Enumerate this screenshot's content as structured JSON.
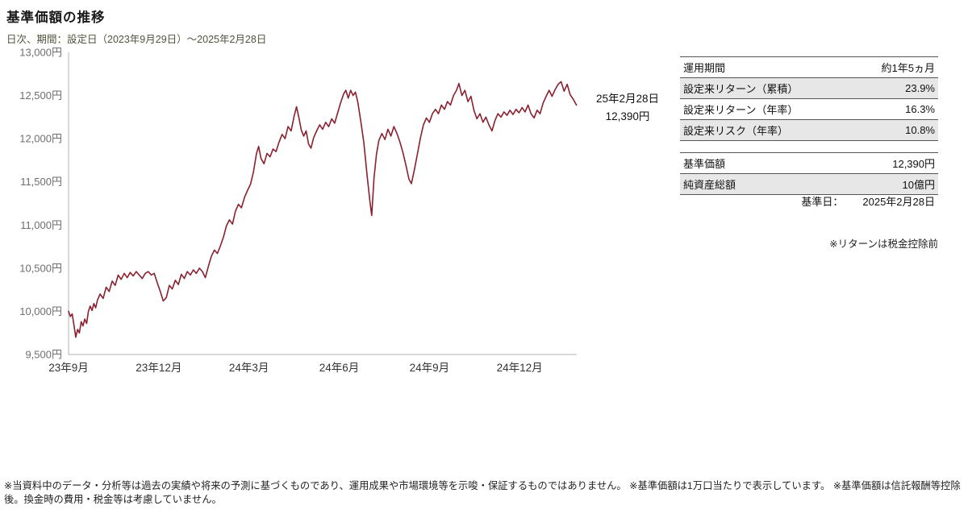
{
  "page": {
    "title": "基準価額の推移",
    "subtitle": "日次、期間：設定日（2023年9月29日）～2025年2月28日",
    "note_right": "※リターンは税金控除前",
    "disclaimer": "※当資料中のデータ・分析等は過去の実績や将来の予測に基づくものであり、運用成果や市場環境等を示唆・保証するものではありません。 ※基準価額は1万口当たりで表示しています。 ※基準価額は信託報酬等控除後。換金時の費用・税金等は考慮していません。"
  },
  "annotation": {
    "date": "25年2月28日",
    "value": "12,390円"
  },
  "tables": {
    "performance": {
      "rows": [
        {
          "label": "運用期間",
          "value": "約1年5ヵ月"
        },
        {
          "label": "設定来リターン（累積）",
          "value": "23.9%"
        },
        {
          "label": "設定来リターン（年率）",
          "value": "16.3%"
        },
        {
          "label": "設定来リスク（年率）",
          "value": "10.8%"
        }
      ]
    },
    "nav": {
      "rows": [
        {
          "label": "基準価額",
          "value": "12,390円"
        },
        {
          "label": "純資産総額",
          "value": "10億円"
        }
      ],
      "as_of_label": "基準日：",
      "as_of_value": "2025年2月28日"
    }
  },
  "chart_data": {
    "type": "line",
    "title": "基準価額の推移",
    "series_name": "基準価額",
    "unit": "円",
    "x_unit": "months_from_setup_2023-09-29",
    "xlim": [
      0,
      16.9
    ],
    "ylim": [
      9500,
      13000
    ],
    "yticks": [
      9500,
      10000,
      10500,
      11000,
      11500,
      12000,
      12500,
      13000
    ],
    "ytick_labels": [
      "9,500円",
      "10,000円",
      "10,500円",
      "11,000円",
      "11,500円",
      "12,000円",
      "12,500円",
      "13,000円"
    ],
    "xticks": [
      0,
      3,
      6,
      9,
      12,
      15
    ],
    "xtick_labels": [
      "23年9月",
      "23年12月",
      "24年3月",
      "24年6月",
      "24年9月",
      "24年12月"
    ],
    "grid": false,
    "legend": false,
    "line_color": "#8b202e",
    "axis_color": "#b3b3b3",
    "last_point": {
      "date": "2025年2月28日",
      "value": 12390
    },
    "points": [
      [
        0.0,
        10000
      ],
      [
        0.06,
        9940
      ],
      [
        0.12,
        9970
      ],
      [
        0.18,
        9840
      ],
      [
        0.24,
        9700
      ],
      [
        0.3,
        9790
      ],
      [
        0.36,
        9750
      ],
      [
        0.42,
        9880
      ],
      [
        0.48,
        9830
      ],
      [
        0.54,
        9910
      ],
      [
        0.6,
        9860
      ],
      [
        0.66,
        10000
      ],
      [
        0.72,
        10060
      ],
      [
        0.78,
        10010
      ],
      [
        0.84,
        10090
      ],
      [
        0.9,
        10040
      ],
      [
        0.96,
        10130
      ],
      [
        1.05,
        10200
      ],
      [
        1.15,
        10150
      ],
      [
        1.25,
        10280
      ],
      [
        1.35,
        10230
      ],
      [
        1.45,
        10350
      ],
      [
        1.55,
        10300
      ],
      [
        1.65,
        10420
      ],
      [
        1.75,
        10370
      ],
      [
        1.85,
        10440
      ],
      [
        1.95,
        10390
      ],
      [
        2.05,
        10450
      ],
      [
        2.15,
        10410
      ],
      [
        2.25,
        10460
      ],
      [
        2.35,
        10420
      ],
      [
        2.45,
        10380
      ],
      [
        2.55,
        10440
      ],
      [
        2.65,
        10460
      ],
      [
        2.75,
        10420
      ],
      [
        2.85,
        10440
      ],
      [
        2.95,
        10330
      ],
      [
        3.05,
        10230
      ],
      [
        3.15,
        10120
      ],
      [
        3.25,
        10160
      ],
      [
        3.35,
        10300
      ],
      [
        3.45,
        10260
      ],
      [
        3.55,
        10360
      ],
      [
        3.65,
        10310
      ],
      [
        3.75,
        10430
      ],
      [
        3.85,
        10380
      ],
      [
        3.95,
        10460
      ],
      [
        4.05,
        10420
      ],
      [
        4.15,
        10480
      ],
      [
        4.25,
        10440
      ],
      [
        4.35,
        10500
      ],
      [
        4.45,
        10460
      ],
      [
        4.55,
        10390
      ],
      [
        4.65,
        10520
      ],
      [
        4.75,
        10640
      ],
      [
        4.85,
        10710
      ],
      [
        4.95,
        10670
      ],
      [
        5.05,
        10760
      ],
      [
        5.15,
        10860
      ],
      [
        5.25,
        10990
      ],
      [
        5.35,
        11060
      ],
      [
        5.45,
        11010
      ],
      [
        5.55,
        11160
      ],
      [
        5.65,
        11240
      ],
      [
        5.75,
        11200
      ],
      [
        5.85,
        11320
      ],
      [
        5.95,
        11400
      ],
      [
        6.05,
        11470
      ],
      [
        6.15,
        11620
      ],
      [
        6.25,
        11830
      ],
      [
        6.32,
        11910
      ],
      [
        6.4,
        11770
      ],
      [
        6.5,
        11710
      ],
      [
        6.6,
        11830
      ],
      [
        6.7,
        11790
      ],
      [
        6.8,
        11880
      ],
      [
        6.9,
        11850
      ],
      [
        7.0,
        11960
      ],
      [
        7.1,
        12050
      ],
      [
        7.2,
        12000
      ],
      [
        7.3,
        12140
      ],
      [
        7.4,
        12090
      ],
      [
        7.5,
        12260
      ],
      [
        7.58,
        12370
      ],
      [
        7.66,
        12240
      ],
      [
        7.74,
        12100
      ],
      [
        7.82,
        12030
      ],
      [
        7.9,
        12090
      ],
      [
        7.98,
        11940
      ],
      [
        8.06,
        11890
      ],
      [
        8.15,
        12010
      ],
      [
        8.25,
        12090
      ],
      [
        8.35,
        12160
      ],
      [
        8.45,
        12110
      ],
      [
        8.55,
        12190
      ],
      [
        8.65,
        12140
      ],
      [
        8.75,
        12230
      ],
      [
        8.85,
        12180
      ],
      [
        8.95,
        12300
      ],
      [
        9.05,
        12420
      ],
      [
        9.15,
        12520
      ],
      [
        9.22,
        12560
      ],
      [
        9.3,
        12470
      ],
      [
        9.38,
        12560
      ],
      [
        9.46,
        12500
      ],
      [
        9.54,
        12540
      ],
      [
        9.62,
        12420
      ],
      [
        9.72,
        12200
      ],
      [
        9.82,
        11950
      ],
      [
        9.92,
        11600
      ],
      [
        10.02,
        11280
      ],
      [
        10.08,
        11110
      ],
      [
        10.16,
        11550
      ],
      [
        10.24,
        11820
      ],
      [
        10.32,
        11980
      ],
      [
        10.42,
        12060
      ],
      [
        10.52,
        11990
      ],
      [
        10.62,
        12110
      ],
      [
        10.72,
        12030
      ],
      [
        10.82,
        12140
      ],
      [
        10.92,
        12060
      ],
      [
        11.02,
        11960
      ],
      [
        11.12,
        11840
      ],
      [
        11.22,
        11690
      ],
      [
        11.32,
        11530
      ],
      [
        11.4,
        11480
      ],
      [
        11.5,
        11640
      ],
      [
        11.6,
        11820
      ],
      [
        11.7,
        12010
      ],
      [
        11.8,
        12160
      ],
      [
        11.9,
        12240
      ],
      [
        12.0,
        12190
      ],
      [
        12.1,
        12290
      ],
      [
        12.2,
        12340
      ],
      [
        12.3,
        12290
      ],
      [
        12.4,
        12390
      ],
      [
        12.5,
        12340
      ],
      [
        12.6,
        12430
      ],
      [
        12.7,
        12390
      ],
      [
        12.8,
        12500
      ],
      [
        12.9,
        12560
      ],
      [
        12.98,
        12640
      ],
      [
        13.08,
        12500
      ],
      [
        13.18,
        12560
      ],
      [
        13.28,
        12430
      ],
      [
        13.38,
        12490
      ],
      [
        13.48,
        12330
      ],
      [
        13.58,
        12230
      ],
      [
        13.68,
        12290
      ],
      [
        13.78,
        12190
      ],
      [
        13.88,
        12250
      ],
      [
        13.98,
        12160
      ],
      [
        14.08,
        12090
      ],
      [
        14.18,
        12210
      ],
      [
        14.28,
        12290
      ],
      [
        14.38,
        12250
      ],
      [
        14.48,
        12310
      ],
      [
        14.58,
        12270
      ],
      [
        14.68,
        12330
      ],
      [
        14.78,
        12280
      ],
      [
        14.88,
        12340
      ],
      [
        14.98,
        12300
      ],
      [
        15.08,
        12360
      ],
      [
        15.18,
        12310
      ],
      [
        15.28,
        12390
      ],
      [
        15.38,
        12290
      ],
      [
        15.48,
        12240
      ],
      [
        15.58,
        12330
      ],
      [
        15.68,
        12290
      ],
      [
        15.78,
        12410
      ],
      [
        15.88,
        12490
      ],
      [
        15.98,
        12560
      ],
      [
        16.08,
        12490
      ],
      [
        16.18,
        12570
      ],
      [
        16.28,
        12630
      ],
      [
        16.38,
        12660
      ],
      [
        16.48,
        12550
      ],
      [
        16.58,
        12630
      ],
      [
        16.68,
        12510
      ],
      [
        16.78,
        12460
      ],
      [
        16.89,
        12390
      ]
    ]
  }
}
